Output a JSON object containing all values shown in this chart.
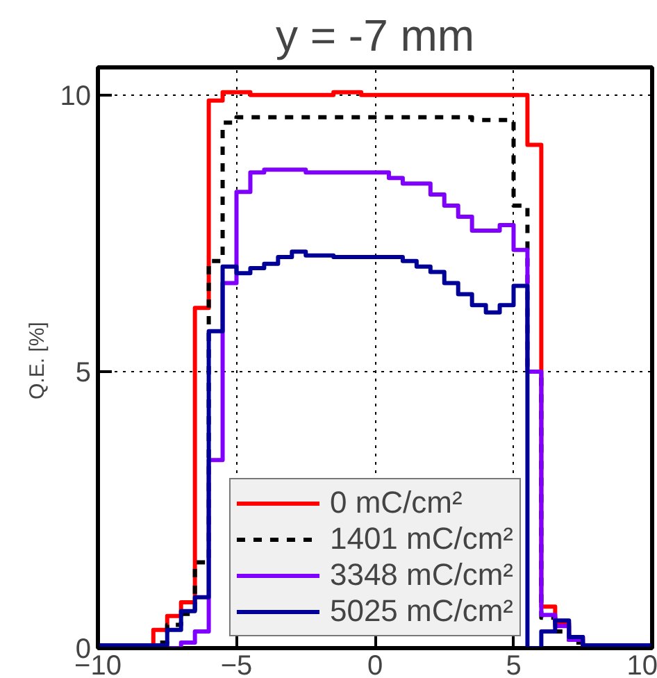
{
  "chart_data": {
    "type": "histogram",
    "title": "y = -7 mm",
    "ylabel": "Q.E.  [%]",
    "bins": [
      -10,
      -9.5,
      -9,
      -8.5,
      -8,
      -7.5,
      -7,
      -6.5,
      -6,
      -5.5,
      -5,
      -4.5,
      -4,
      -3.5,
      -3,
      -2.5,
      -2,
      -1.5,
      -1,
      -0.5,
      0,
      0.5,
      1,
      1.5,
      2,
      2.5,
      3,
      3.5,
      4,
      4.5,
      5,
      5.5,
      6,
      6.5,
      7,
      7.5,
      8,
      8.5,
      9,
      9.5,
      10
    ],
    "series": [
      {
        "name": "0 mC/cm²",
        "color": "#ff0000",
        "line_style": "solid",
        "values": [
          0.05,
          0.05,
          0.05,
          0.05,
          0.33,
          0.58,
          0.83,
          6.15,
          9.9,
          10.05,
          10.05,
          10.0,
          10.0,
          10.0,
          10.0,
          10.0,
          10.0,
          10.05,
          10.05,
          10.0,
          10.0,
          10.0,
          10.0,
          10.0,
          10.0,
          10.0,
          10.0,
          10.0,
          10.0,
          10.0,
          10.0,
          9.1,
          0.75,
          0.45,
          0.2,
          0.05,
          0.05,
          0.05,
          0.05,
          0.05
        ]
      },
      {
        "name": "1401 mC/cm²",
        "color": "#000000",
        "line_style": "dashed",
        "values": [
          0.02,
          0.02,
          0.02,
          0.02,
          0.1,
          0.42,
          0.62,
          1.55,
          7.0,
          9.5,
          9.6,
          9.6,
          9.6,
          9.6,
          9.6,
          9.6,
          9.6,
          9.6,
          9.6,
          9.6,
          9.6,
          9.6,
          9.6,
          9.6,
          9.6,
          9.6,
          9.6,
          9.55,
          9.55,
          9.55,
          8.0,
          5.0,
          0.55,
          0.3,
          0.1,
          0.02,
          0.02,
          0.02,
          0.02,
          0.02
        ]
      },
      {
        "name": "3348 mC/cm²",
        "color": "#8000ff",
        "line_style": "solid",
        "values": [
          0,
          0.05,
          0,
          0,
          0,
          0,
          0.1,
          0.3,
          3.4,
          6.6,
          8.25,
          8.6,
          8.65,
          8.65,
          8.65,
          8.6,
          8.6,
          8.6,
          8.6,
          8.6,
          8.6,
          8.5,
          8.4,
          8.4,
          8.2,
          8.0,
          7.8,
          7.55,
          7.55,
          7.65,
          7.2,
          5.0,
          0.6,
          0.4,
          0.15,
          0.05,
          0,
          0,
          0,
          0
        ]
      },
      {
        "name": "5025 mC/cm²",
        "color": "#000099",
        "line_style": "solid",
        "values": [
          0.05,
          0.05,
          0.05,
          0.05,
          0.05,
          0.33,
          0.67,
          0.92,
          5.73,
          6.9,
          6.78,
          6.87,
          6.95,
          7.07,
          7.17,
          7.1,
          7.1,
          7.07,
          7.07,
          7.07,
          7.07,
          7.07,
          7.0,
          6.9,
          6.8,
          6.6,
          6.4,
          6.2,
          6.07,
          6.2,
          6.55,
          0,
          0.3,
          0.5,
          0.2,
          0.05,
          0.05,
          0.05,
          0.05,
          0.05
        ]
      }
    ],
    "xlim": [
      -10,
      10
    ],
    "ylim": [
      0,
      10.5
    ],
    "xticks": [
      -10,
      -5,
      0,
      5,
      10
    ],
    "yticks": [
      0,
      5,
      10
    ],
    "grid": true,
    "legend": "bottom"
  }
}
